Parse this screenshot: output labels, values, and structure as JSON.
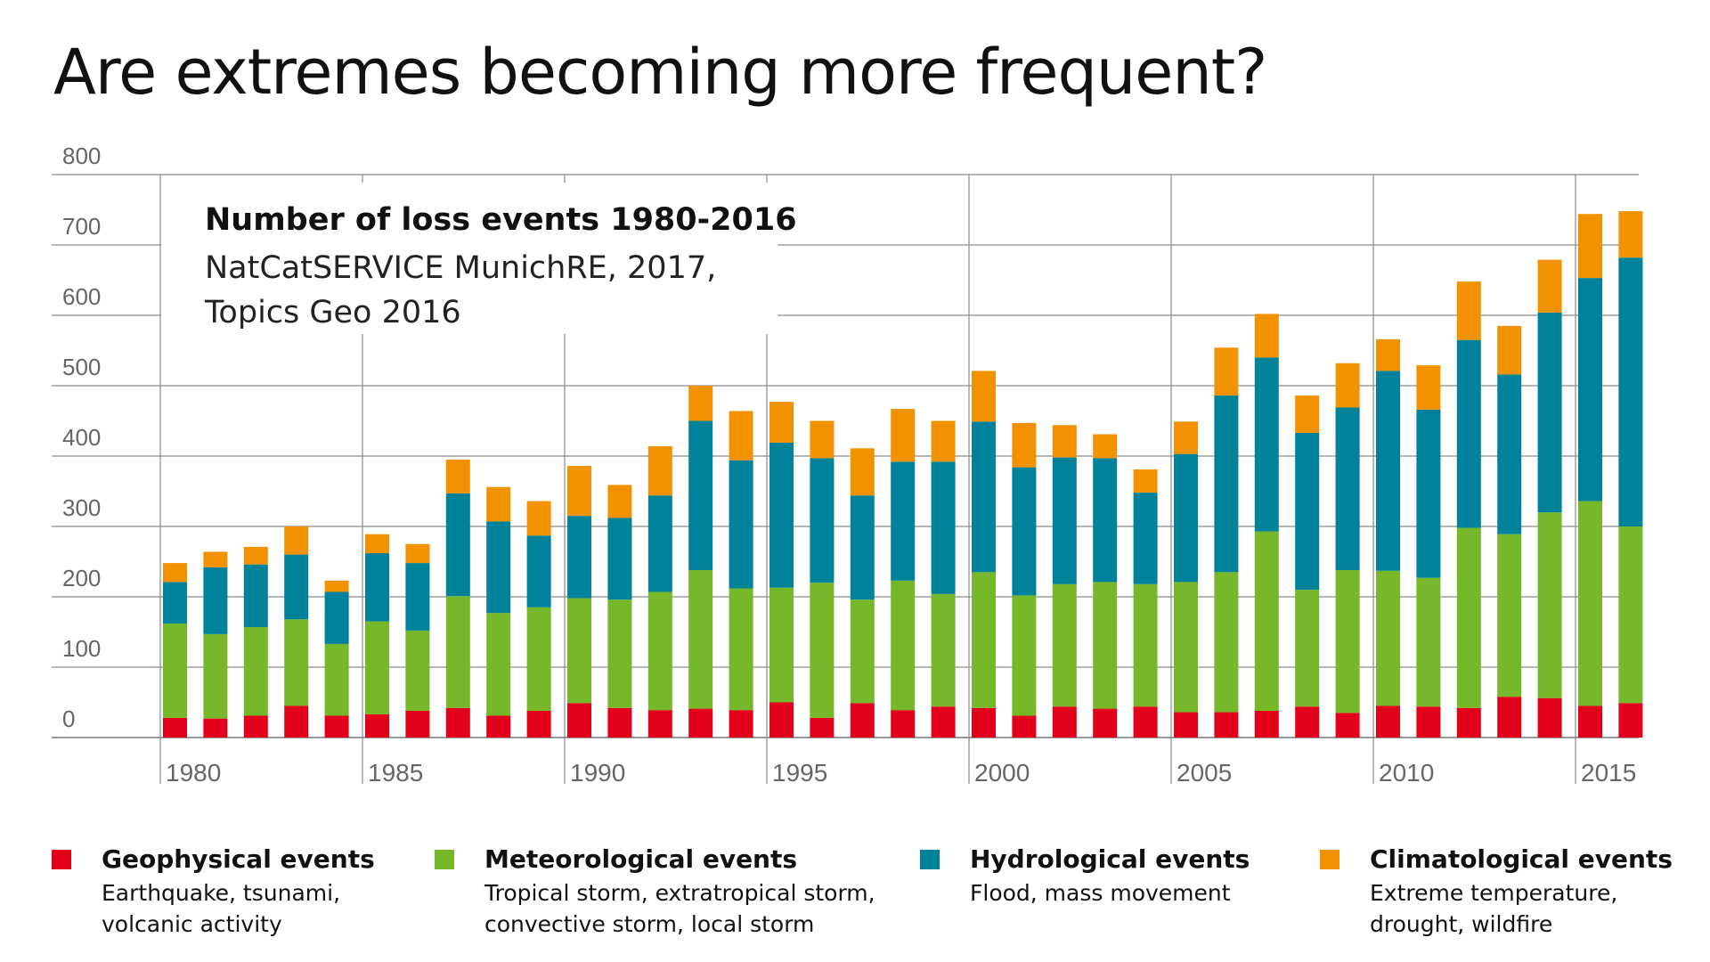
{
  "chart_data": {
    "type": "bar",
    "stacked": true,
    "title": "Are extremes becoming more frequent?",
    "annotation": {
      "heading": "Number of loss events 1980-2016",
      "source_line1": "NatCatSERVICE MunichRE, 2017,",
      "source_line2": "Topics Geo 2016"
    },
    "ylim": [
      0,
      800
    ],
    "yticks": [
      0,
      100,
      200,
      300,
      400,
      500,
      600,
      700,
      800
    ],
    "xtick_labels": [
      "1980",
      "1985",
      "1990",
      "1995",
      "2000",
      "2005",
      "2010",
      "2015"
    ],
    "grid": true,
    "legend_position": "bottom",
    "categories": [
      1980,
      1981,
      1982,
      1983,
      1984,
      1985,
      1986,
      1987,
      1988,
      1989,
      1990,
      1991,
      1992,
      1993,
      1994,
      1995,
      1996,
      1997,
      1998,
      1999,
      2000,
      2001,
      2002,
      2003,
      2004,
      2005,
      2006,
      2007,
      2008,
      2009,
      2010,
      2011,
      2012,
      2013,
      2014,
      2015,
      2016
    ],
    "series": [
      {
        "name": "Geophysical events",
        "description": "Earthquake, tsunami,\nvolcanic activity",
        "color": "#e3001b",
        "values": [
          28,
          27,
          31,
          45,
          31,
          33,
          38,
          42,
          31,
          38,
          49,
          42,
          39,
          41,
          39,
          50,
          28,
          49,
          39,
          44,
          42,
          31,
          44,
          41,
          44,
          36,
          36,
          38,
          44,
          35,
          45,
          44,
          42,
          58,
          56,
          45,
          49
        ]
      },
      {
        "name": "Meteorological events",
        "description": "Tropical storm, extratropical storm,\nconvective storm, local storm",
        "color": "#76b82a",
        "values": [
          134,
          120,
          126,
          123,
          102,
          132,
          114,
          159,
          146,
          147,
          149,
          154,
          168,
          197,
          173,
          163,
          192,
          147,
          184,
          160,
          193,
          171,
          174,
          180,
          174,
          185,
          199,
          255,
          166,
          203,
          192,
          183,
          256,
          231,
          264,
          291,
          251
        ]
      },
      {
        "name": "Hydrological events",
        "description": "Flood, mass movement",
        "color": "#00829b",
        "values": [
          59,
          95,
          89,
          92,
          74,
          97,
          96,
          146,
          130,
          102,
          117,
          116,
          137,
          212,
          182,
          206,
          177,
          148,
          169,
          188,
          214,
          182,
          180,
          176,
          130,
          182,
          251,
          247,
          223,
          231,
          284,
          239,
          267,
          227,
          284,
          317,
          382
        ]
      },
      {
        "name": "Climatological events",
        "description": "Extreme temperature,\ndrought, wildfire",
        "color": "#f39200",
        "values": [
          27,
          22,
          25,
          40,
          16,
          27,
          27,
          48,
          49,
          49,
          71,
          47,
          70,
          50,
          70,
          58,
          53,
          67,
          75,
          58,
          72,
          63,
          46,
          34,
          33,
          46,
          68,
          62,
          53,
          63,
          45,
          63,
          83,
          69,
          75,
          91,
          66
        ]
      }
    ]
  }
}
